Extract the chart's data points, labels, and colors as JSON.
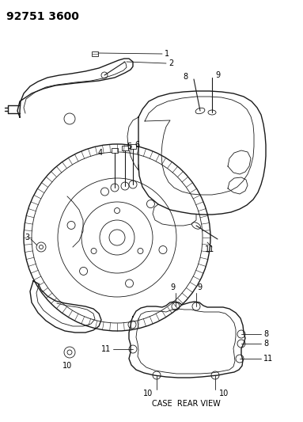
{
  "title": "92751 3600",
  "background_color": "#ffffff",
  "line_color": "#1a1a1a",
  "case_rear_view_label": "CASE  REAR VIEW",
  "figsize": [
    3.83,
    5.33
  ],
  "dpi": 100
}
